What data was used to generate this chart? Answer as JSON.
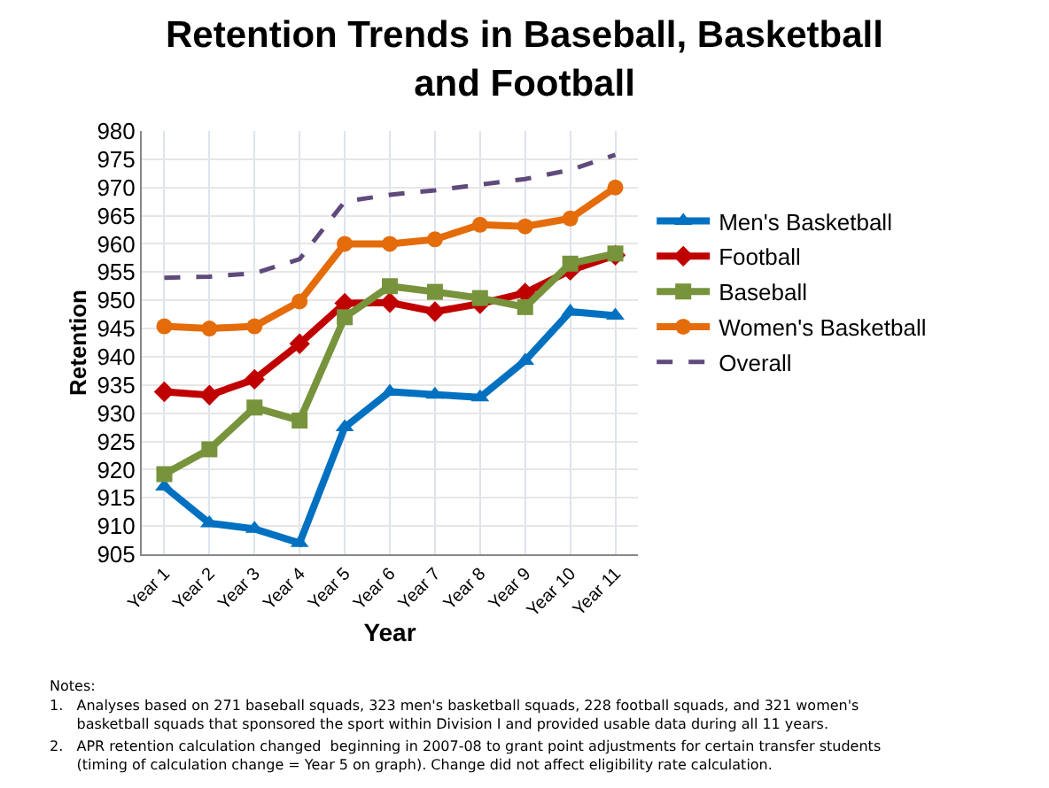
{
  "chart_data": {
    "type": "line",
    "title": "Retention Trends in Baseball, Basketball\nand Football",
    "xlabel": "Year",
    "ylabel": "Retention",
    "categories": [
      "Year 1",
      "Year 2",
      "Year 3",
      "Year 4",
      "Year 5",
      "Year 6",
      "Year 7",
      "Year 8",
      "Year 9",
      "Year 10",
      "Year 11"
    ],
    "series": [
      {
        "name": "Men's Basketball",
        "color": "#0070c0",
        "marker": "triangle",
        "line_style": "solid",
        "values": [
          917,
          910.5,
          909.5,
          907,
          927.5,
          933.8,
          933.3,
          932.8,
          939.3,
          948,
          947.3
        ]
      },
      {
        "name": "Football",
        "color": "#c00000",
        "marker": "diamond",
        "line_style": "solid",
        "values": [
          933.8,
          933.2,
          936,
          942.3,
          949.5,
          949.6,
          948,
          949.4,
          951.3,
          955.3,
          958
        ]
      },
      {
        "name": "Baseball",
        "color": "#77933c",
        "marker": "square",
        "line_style": "solid",
        "values": [
          919.2,
          923.6,
          931,
          928.7,
          947,
          952.5,
          951.5,
          950.4,
          948.8,
          956.5,
          958.3
        ]
      },
      {
        "name": "Women's Basketball",
        "color": "#e46c0a",
        "marker": "circle",
        "line_style": "solid",
        "values": [
          945.4,
          945,
          945.4,
          949.8,
          960,
          960,
          960.8,
          963.4,
          963.1,
          964.5,
          970
        ]
      },
      {
        "name": "Overall",
        "color": "#604a7b",
        "marker": "none",
        "line_style": "dashed",
        "values": [
          954,
          954.2,
          954.8,
          957.3,
          967.5,
          968.7,
          969.5,
          970.5,
          971.5,
          973.1,
          975.8
        ]
      }
    ],
    "ylim": [
      905,
      980
    ],
    "yticks": [
      905,
      910,
      915,
      920,
      925,
      930,
      935,
      940,
      945,
      950,
      955,
      960,
      965,
      970,
      975,
      980
    ],
    "grid": true,
    "legend": "right",
    "annotations": [
      "Notes:",
      "1.   Analyses based on 271 baseball squads, 323 men's basketball squads, 228 football squads, and 321 women's\n      basketball squads that sponsored the sport within Division I and provided usable data during all 11 years.",
      "2.   APR retention calculation changed  beginning in 2007-08 to grant point adjustments for certain transfer students\n      (timing of calculation change = Year 5 on graph). Change did not affect eligibility rate calculation."
    ]
  }
}
